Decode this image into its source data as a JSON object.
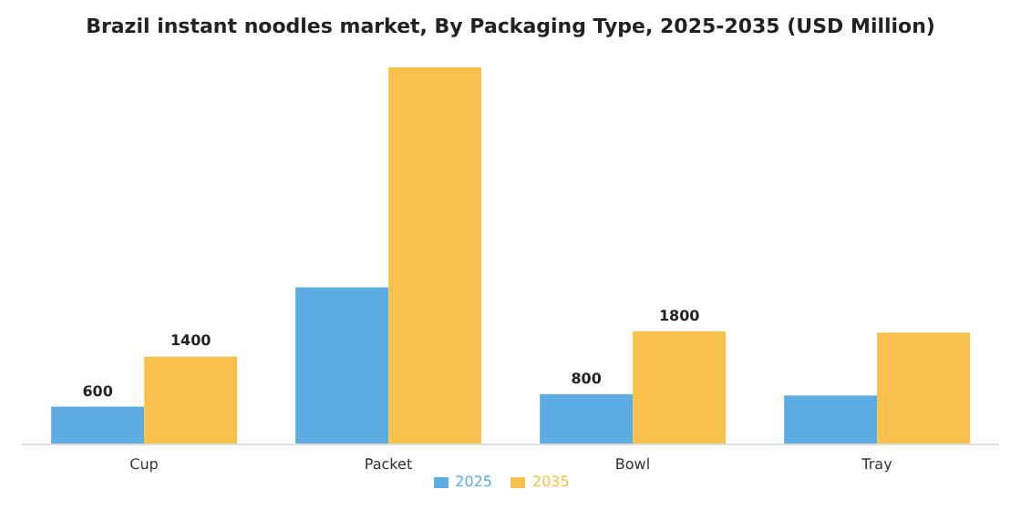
{
  "chart_data": {
    "type": "bar",
    "title": "Brazil instant noodles market, By Packaging Type, 2025-2035 (USD Million)",
    "categories": [
      "Cup",
      "Packet",
      "Bowl",
      "Tray"
    ],
    "series": [
      {
        "name": "2025",
        "color": "#5dade2",
        "values": [
          600,
          2500,
          800,
          780
        ],
        "value_labels": [
          "600",
          null,
          "800",
          null
        ]
      },
      {
        "name": "2035",
        "color": "#f7c14c",
        "values": [
          1400,
          6000,
          1800,
          1780
        ],
        "value_labels": [
          "1400",
          null,
          "1800",
          null
        ]
      }
    ],
    "legend": "bottom",
    "grid": false
  }
}
